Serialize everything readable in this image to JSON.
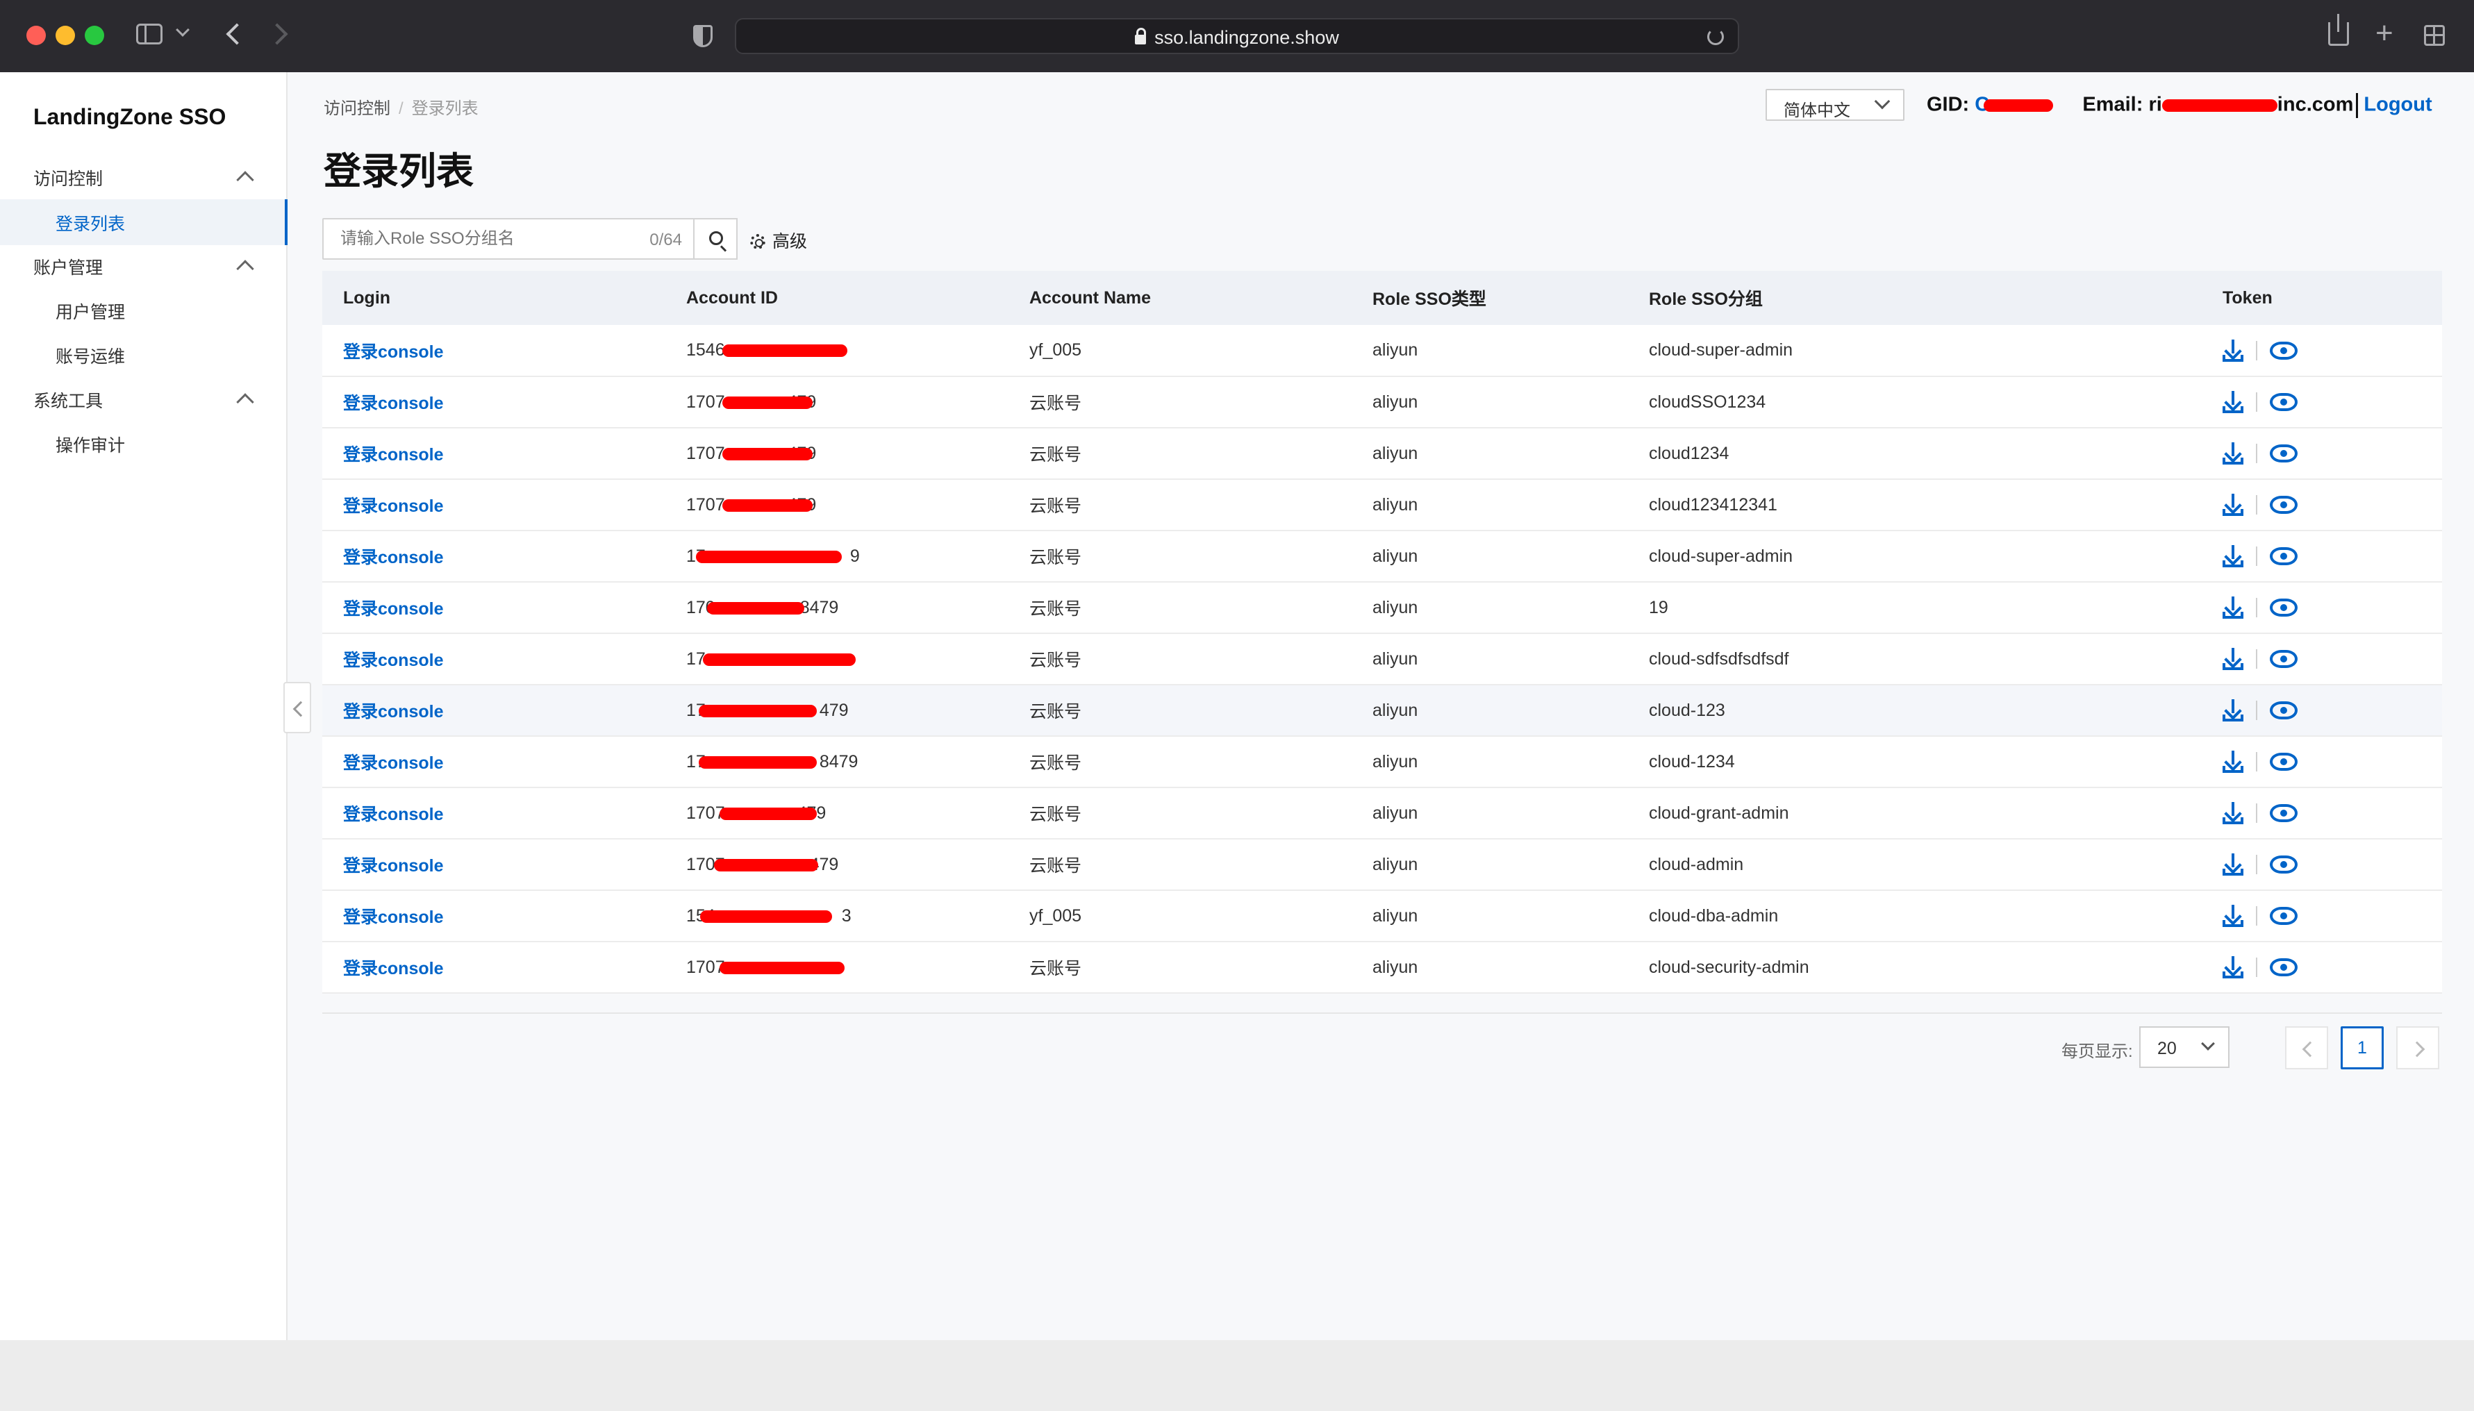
{
  "browser": {
    "url": "sso.landingzone.show"
  },
  "sidebar": {
    "brand": "LandingZone SSO",
    "groups": [
      {
        "label": "访问控制",
        "items": [
          "登录列表"
        ]
      },
      {
        "label": "账户管理",
        "items": [
          "用户管理",
          "账号运维"
        ]
      },
      {
        "label": "系统工具",
        "items": [
          "操作审计"
        ]
      }
    ],
    "active_item": "登录列表"
  },
  "header": {
    "breadcrumb": [
      "访问控制",
      "登录列表"
    ],
    "title": "登录列表",
    "language": "简体中文",
    "gid_label": "GID:",
    "gid_value": "C",
    "email_label": "Email:",
    "email_prefix": "ri",
    "email_suffix": "inc.com",
    "logout": "Logout"
  },
  "search": {
    "placeholder": "请输入Role SSO分组名",
    "count": "0/64",
    "advanced": "高级"
  },
  "table": {
    "headers": [
      "Login",
      "Account ID",
      "Account Name",
      "Role SSO类型",
      "Role SSO分组",
      "Token"
    ],
    "login_label": "登录console",
    "rows": [
      {
        "acct_prefix": "1546",
        "acct_suffix": "",
        "name": "yf_005",
        "type": "aliyun",
        "group": "cloud-super-admin"
      },
      {
        "acct_prefix": "1707",
        "acct_suffix": "479",
        "name": "云账号",
        "type": "aliyun",
        "group": "cloudSSO1234"
      },
      {
        "acct_prefix": "1707",
        "acct_suffix": "479",
        "name": "云账号",
        "type": "aliyun",
        "group": "cloud1234"
      },
      {
        "acct_prefix": "1707",
        "acct_suffix": "479",
        "name": "云账号",
        "type": "aliyun",
        "group": "cloud123412341"
      },
      {
        "acct_prefix": "17",
        "acct_suffix": "9",
        "name": "云账号",
        "type": "aliyun",
        "group": "cloud-super-admin"
      },
      {
        "acct_prefix": "170",
        "acct_suffix": "8479",
        "name": "云账号",
        "type": "aliyun",
        "group": "19"
      },
      {
        "acct_prefix": "17",
        "acct_suffix": "",
        "name": "云账号",
        "type": "aliyun",
        "group": "cloud-sdfsdfsdfsdf"
      },
      {
        "acct_prefix": "17",
        "acct_suffix": "479",
        "name": "云账号",
        "type": "aliyun",
        "group": "cloud-123"
      },
      {
        "acct_prefix": "17",
        "acct_suffix": "8479",
        "name": "云账号",
        "type": "aliyun",
        "group": "cloud-1234"
      },
      {
        "acct_prefix": "1707",
        "acct_suffix": "479",
        "name": "云账号",
        "type": "aliyun",
        "group": "cloud-grant-admin"
      },
      {
        "acct_prefix": "1707",
        "acct_suffix": "479",
        "name": "云账号",
        "type": "aliyun",
        "group": "cloud-admin"
      },
      {
        "acct_prefix": "154",
        "acct_suffix": "3",
        "name": "yf_005",
        "type": "aliyun",
        "group": "cloud-dba-admin"
      },
      {
        "acct_prefix": "1707",
        "acct_suffix": "",
        "name": "云账号",
        "type": "aliyun",
        "group": "cloud-security-admin"
      }
    ]
  },
  "pagination": {
    "per_page_label": "每页显示:",
    "per_page": "20",
    "current_page": "1"
  },
  "colors": {
    "accent": "#0064c8",
    "redaction": "#ff0000"
  }
}
